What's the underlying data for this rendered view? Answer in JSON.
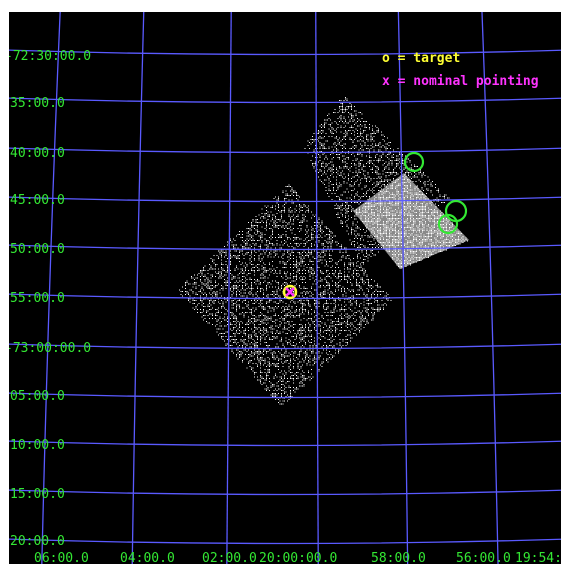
{
  "colors": {
    "background": "#000000",
    "grid": "#5a5aff",
    "axis_labels": "#33e833",
    "exposure": "#ffffff",
    "target_marker": "#ffff33",
    "pointing_marker": "#ff33ff",
    "source_circles": "#33e833"
  },
  "legend": {
    "target": "o = target",
    "pointing": "x = nominal pointing"
  },
  "dec_labels": [
    "-72:30:00.0",
    "35:00.0",
    "40:00.0",
    "45:00.0",
    "50:00.0",
    "55:00.0",
    "-73:00:00.0",
    "05:00.0",
    "10:00.0",
    "15:00.0",
    "20:00.0"
  ],
  "ra_labels": [
    "06:00.0",
    "04:00.0",
    "02:00.0",
    "20:00:00.0",
    "58:00.0",
    "56:00.0",
    "19:54:"
  ],
  "icons": {
    "target": "circle-icon",
    "pointing": "x-cross-icon",
    "source": "ring-icon"
  }
}
